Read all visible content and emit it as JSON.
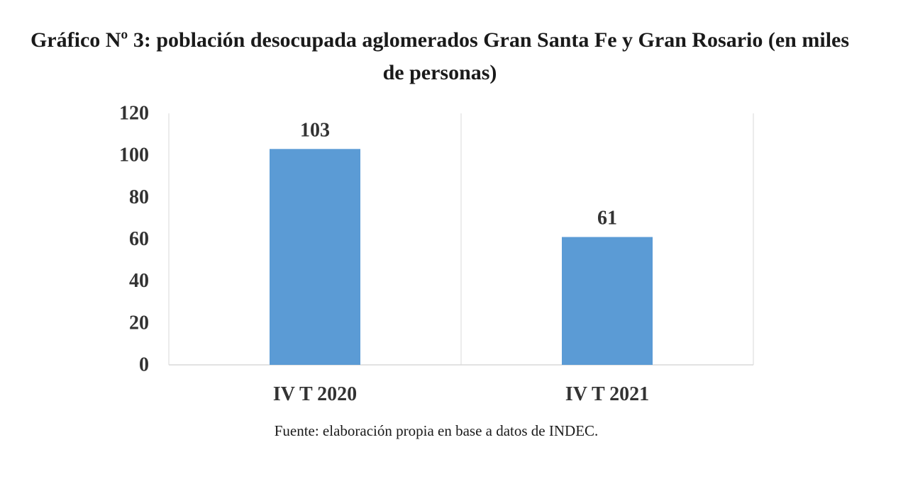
{
  "chart_data": {
    "type": "bar",
    "title": "Gráfico Nº 3: población desocupada aglomerados Gran Santa Fe y Gran Rosario (en miles de personas)",
    "categories": [
      "IV T 2020",
      "IV T 2021"
    ],
    "values": [
      103,
      61
    ],
    "data_labels": [
      "103",
      "61"
    ],
    "ylim": [
      0,
      120
    ],
    "yticks": [
      0,
      20,
      40,
      60,
      80,
      100,
      120
    ],
    "grid": "vertical category separators",
    "legend": "none",
    "bar_color": "#5B9BD5",
    "xlabel": "",
    "ylabel": ""
  },
  "footer": {
    "source": "Fuente: elaboración propia en base a datos de INDEC."
  }
}
